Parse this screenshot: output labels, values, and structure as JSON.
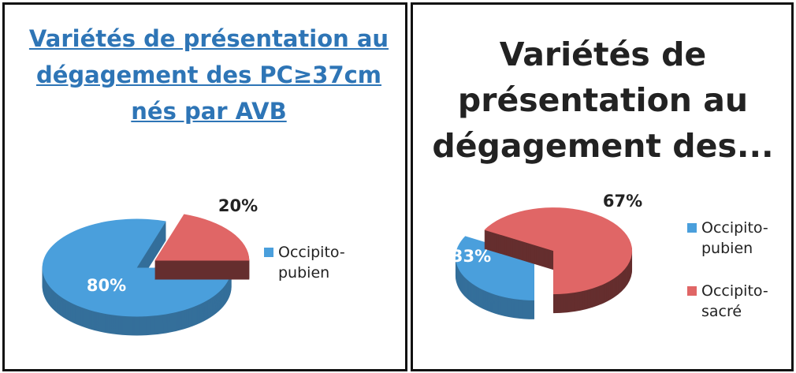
{
  "chart_data": [
    {
      "type": "pie",
      "title": "Variétés de présentation au dégagement des PC≥37cm nés par AVB",
      "categories": [
        "Occipito-pubien",
        null
      ],
      "values": [
        80,
        20
      ],
      "value_labels": [
        "80%",
        "20%"
      ],
      "colors": [
        "#4a9fdc",
        "#e06666"
      ]
    },
    {
      "type": "pie",
      "title": "Variétés de présentation au dégagement des...",
      "categories": [
        "Occipito-pubien",
        "Occipito-sacré"
      ],
      "values": [
        33,
        67
      ],
      "value_labels": [
        "33%",
        "67%"
      ],
      "colors": [
        "#4a9fdc",
        "#e06666"
      ]
    }
  ]
}
